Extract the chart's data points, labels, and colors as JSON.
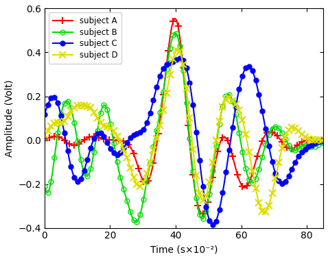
{
  "xlabel": "Time (s×10⁻²)",
  "ylabel": "Amplitude (Volt)",
  "xlim": [
    0,
    85
  ],
  "ylim": [
    -0.4,
    0.6
  ],
  "yticks": [
    -0.4,
    -0.2,
    0,
    0.2,
    0.4,
    0.6
  ],
  "xticks": [
    0,
    20,
    40,
    60,
    80
  ],
  "legend_labels": [
    "subject A",
    "subject B",
    "subject C",
    "subject D"
  ],
  "colors": [
    "#ff0000",
    "#00dd00",
    "#0000ff",
    "#dddd00"
  ],
  "linewidths": [
    1.5,
    1.5,
    1.5,
    1.5
  ],
  "n_points": 170
}
